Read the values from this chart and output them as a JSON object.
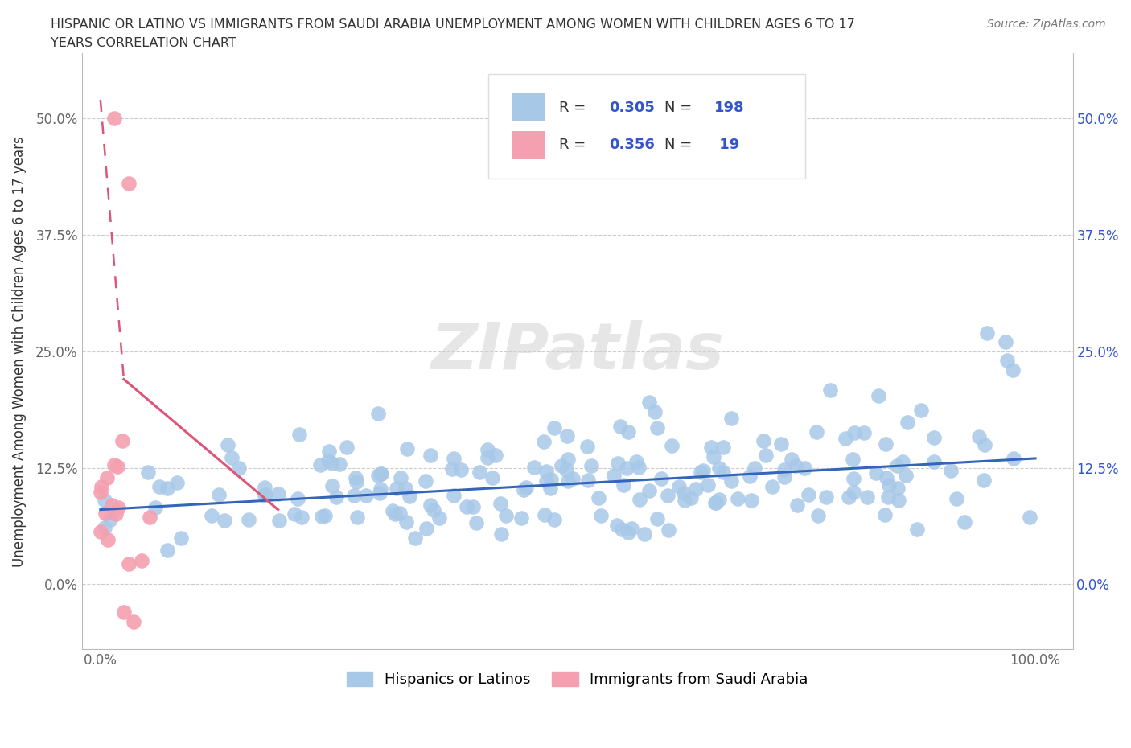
{
  "title_line1": "HISPANIC OR LATINO VS IMMIGRANTS FROM SAUDI ARABIA UNEMPLOYMENT AMONG WOMEN WITH CHILDREN AGES 6 TO 17",
  "title_line2": "YEARS CORRELATION CHART",
  "source": "Source: ZipAtlas.com",
  "ylabel": "Unemployment Among Women with Children Ages 6 to 17 years",
  "yticks": [
    0,
    12.5,
    25.0,
    37.5,
    50.0
  ],
  "ytick_labels": [
    "0.0%",
    "12.5%",
    "25.0%",
    "37.5%",
    "50.0%"
  ],
  "xtick_labels_show": [
    "0.0%",
    "100.0%"
  ],
  "blue_color": "#a8c8e8",
  "pink_color": "#f4a0b0",
  "trend_blue_color": "#3366bb",
  "trend_pink_color": "#dd5577",
  "watermark": "ZIPatlas",
  "legend_label1": "Hispanics or Latinos",
  "legend_label2": "Immigrants from Saudi Arabia",
  "R1": "0.305",
  "N1": "198",
  "R2": "0.356",
  "N2": " 19",
  "text_color_label": "#333333",
  "text_color_value": "#3355cc"
}
